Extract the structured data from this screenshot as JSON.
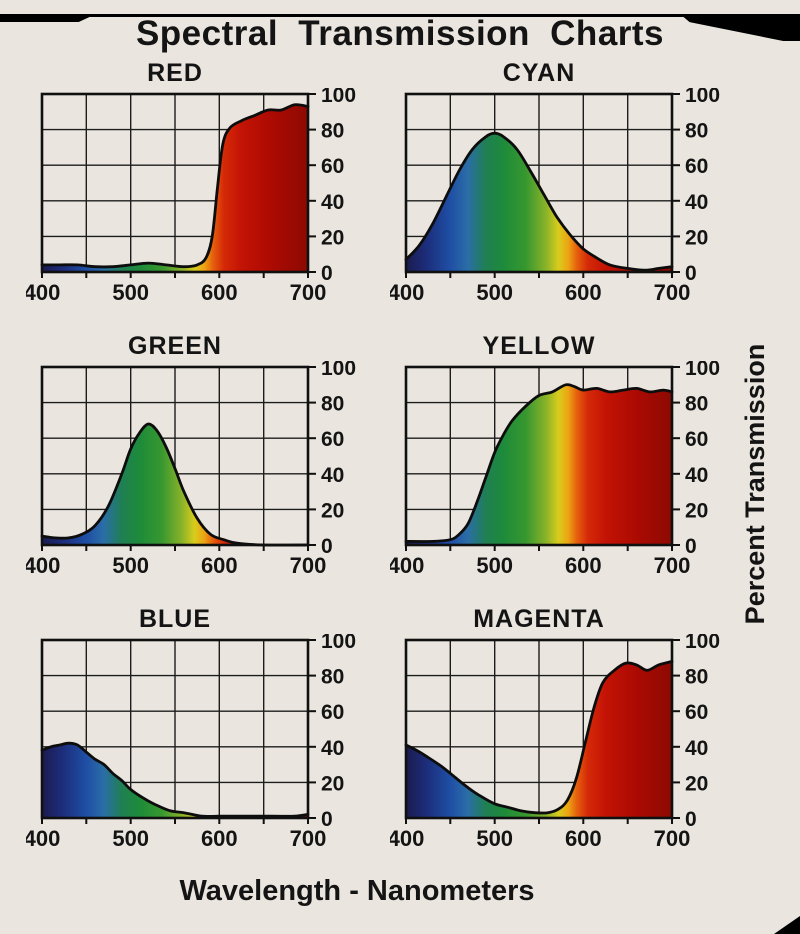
{
  "title": "Spectral Transmission Charts",
  "axis": {
    "x_label": "Wavelength - Nanometers",
    "y_label": "Percent Transmission",
    "x_range": [
      400,
      700
    ],
    "y_range": [
      0,
      100
    ],
    "x_ticks": [
      400,
      500,
      600,
      700
    ],
    "x_minor_step": 50,
    "y_ticks": [
      100,
      80,
      60,
      40,
      20,
      0
    ],
    "grid": true
  },
  "colors": {
    "background": "#eae6df",
    "ink": "#111111",
    "spectrum": [
      {
        "wl": 400,
        "color": "#1b1b4e"
      },
      {
        "wl": 425,
        "color": "#1c2f7e"
      },
      {
        "wl": 450,
        "color": "#1f4fa5"
      },
      {
        "wl": 470,
        "color": "#2b6ea6"
      },
      {
        "wl": 490,
        "color": "#1f7f52"
      },
      {
        "wl": 510,
        "color": "#1e8b3a"
      },
      {
        "wl": 535,
        "color": "#37972f"
      },
      {
        "wl": 558,
        "color": "#8ab329"
      },
      {
        "wl": 572,
        "color": "#d8cc1c"
      },
      {
        "wl": 583,
        "color": "#eda413"
      },
      {
        "wl": 593,
        "color": "#e55f0d"
      },
      {
        "wl": 605,
        "color": "#d52a08"
      },
      {
        "wl": 625,
        "color": "#c31305"
      },
      {
        "wl": 660,
        "color": "#ab0a02"
      },
      {
        "wl": 700,
        "color": "#8c0a02"
      }
    ]
  },
  "chart_data": [
    {
      "type": "area",
      "title": "RED",
      "xlabel": "Wavelength - Nanometers",
      "ylabel": "Percent Transmission",
      "xlim": [
        400,
        700
      ],
      "ylim": [
        0,
        100
      ],
      "x": [
        400,
        420,
        440,
        460,
        480,
        500,
        520,
        540,
        560,
        575,
        585,
        592,
        598,
        604,
        612,
        625,
        640,
        655,
        670,
        685,
        700
      ],
      "values": [
        4,
        4,
        4,
        3,
        3,
        4,
        5,
        4,
        3,
        4,
        8,
        20,
        48,
        72,
        81,
        85,
        88,
        91,
        91,
        94,
        93
      ]
    },
    {
      "type": "area",
      "title": "CYAN",
      "xlabel": "Wavelength - Nanometers",
      "ylabel": "Percent Transmission",
      "xlim": [
        400,
        700
      ],
      "ylim": [
        0,
        100
      ],
      "x": [
        400,
        415,
        430,
        445,
        460,
        475,
        490,
        500,
        510,
        525,
        540,
        555,
        570,
        585,
        600,
        615,
        630,
        650,
        670,
        685,
        700
      ],
      "values": [
        7,
        15,
        27,
        42,
        57,
        69,
        76,
        78,
        76,
        69,
        57,
        44,
        31,
        21,
        13,
        8,
        4,
        2,
        1,
        2,
        3
      ]
    },
    {
      "type": "area",
      "title": "GREEN",
      "xlabel": "Wavelength - Nanometers",
      "ylabel": "Percent Transmission",
      "xlim": [
        400,
        700
      ],
      "ylim": [
        0,
        100
      ],
      "x": [
        400,
        415,
        430,
        445,
        460,
        475,
        490,
        500,
        510,
        520,
        530,
        540,
        550,
        560,
        575,
        590,
        605,
        620,
        650,
        700
      ],
      "values": [
        5,
        4,
        4,
        6,
        11,
        22,
        40,
        54,
        63,
        68,
        64,
        55,
        43,
        30,
        15,
        6,
        3,
        1,
        0,
        0
      ]
    },
    {
      "type": "area",
      "title": "YELLOW",
      "xlabel": "Wavelength - Nanometers",
      "ylabel": "Percent Transmission",
      "xlim": [
        400,
        700
      ],
      "ylim": [
        0,
        100
      ],
      "x": [
        400,
        430,
        450,
        460,
        470,
        480,
        490,
        500,
        510,
        520,
        535,
        550,
        565,
        580,
        590,
        600,
        615,
        630,
        645,
        660,
        675,
        690,
        700
      ],
      "values": [
        2,
        2,
        3,
        6,
        12,
        24,
        38,
        52,
        62,
        70,
        78,
        84,
        86,
        90,
        89,
        87,
        88,
        86,
        87,
        88,
        86,
        87,
        86
      ]
    },
    {
      "type": "area",
      "title": "BLUE",
      "xlabel": "Wavelength - Nanometers",
      "ylabel": "Percent Transmission",
      "xlim": [
        400,
        700
      ],
      "ylim": [
        0,
        100
      ],
      "x": [
        400,
        410,
        420,
        430,
        440,
        450,
        460,
        470,
        480,
        490,
        500,
        515,
        530,
        545,
        560,
        580,
        600,
        630,
        660,
        685,
        700
      ],
      "values": [
        38,
        40,
        41,
        42,
        41,
        37,
        33,
        30,
        25,
        21,
        16,
        11,
        7,
        4,
        3,
        1,
        1,
        1,
        1,
        1,
        2
      ]
    },
    {
      "type": "area",
      "title": "MAGENTA",
      "xlabel": "Wavelength - Nanometers",
      "ylabel": "Percent Transmission",
      "xlim": [
        400,
        700
      ],
      "ylim": [
        0,
        100
      ],
      "x": [
        400,
        412,
        425,
        440,
        455,
        470,
        485,
        500,
        515,
        530,
        545,
        560,
        572,
        582,
        592,
        602,
        612,
        622,
        635,
        648,
        660,
        672,
        685,
        700
      ],
      "values": [
        41,
        38,
        34,
        29,
        23,
        17,
        12,
        8,
        6,
        4,
        3,
        3,
        5,
        10,
        22,
        42,
        62,
        76,
        83,
        87,
        86,
        83,
        86,
        88
      ]
    }
  ]
}
